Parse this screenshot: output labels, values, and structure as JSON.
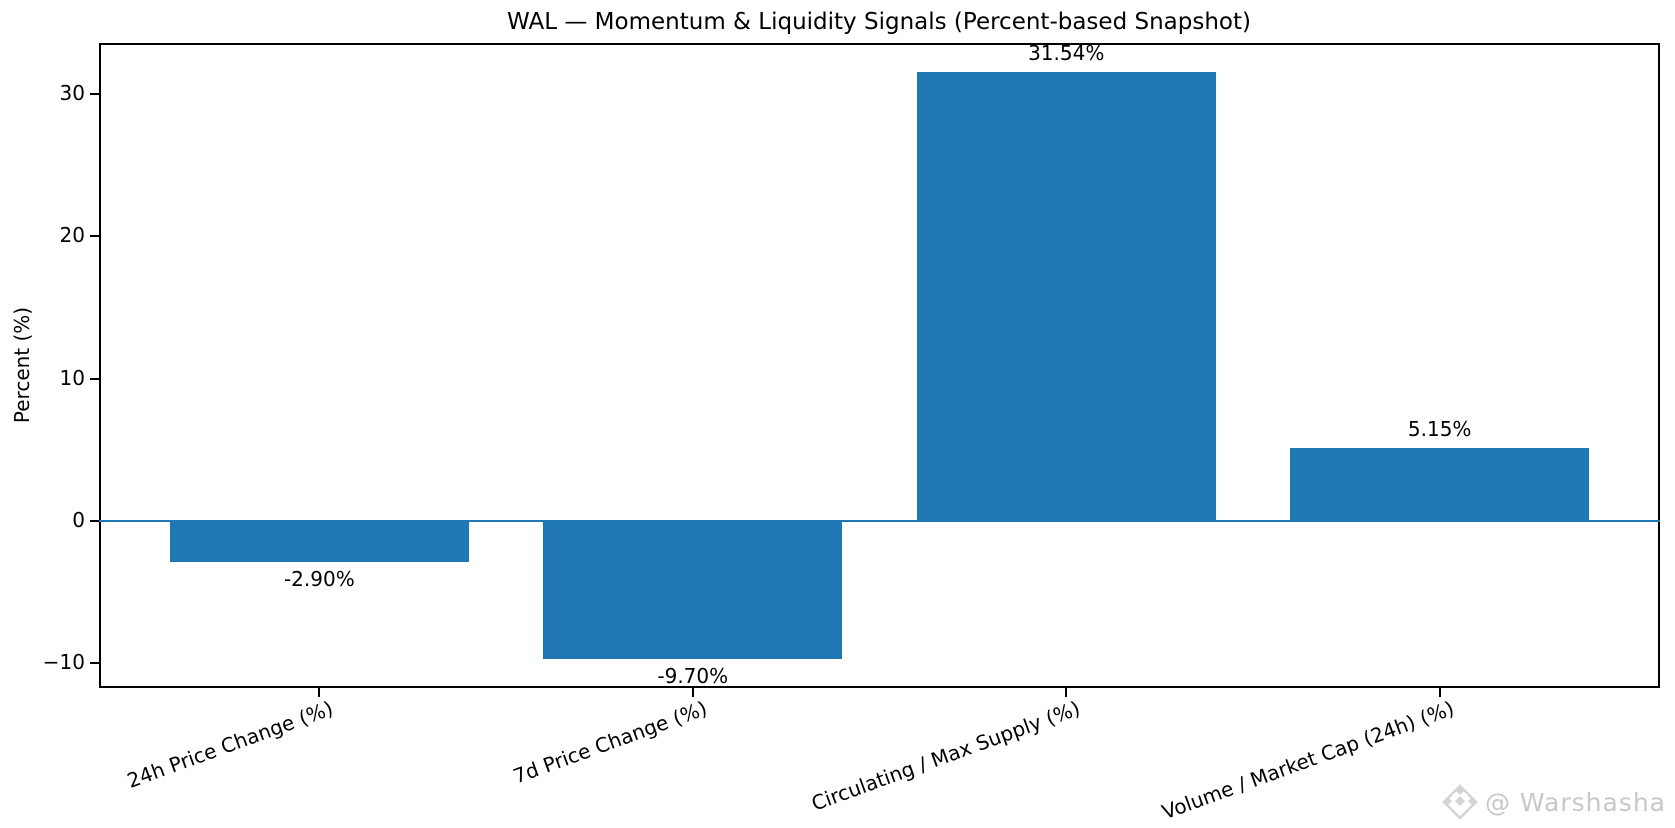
{
  "chart_data": {
    "type": "bar",
    "title": "WAL — Momentum & Liquidity Signals (Percent-based Snapshot)",
    "xlabel": "",
    "ylabel": "Percent (%)",
    "categories": [
      "24h Price Change (%)",
      "7d Price Change (%)",
      "Circulating / Max Supply (%)",
      "Volume / Market Cap (24h) (%)"
    ],
    "values": [
      -2.9,
      -9.7,
      31.54,
      5.15
    ],
    "bar_labels": [
      "-2.90%",
      "-9.70%",
      "31.54%",
      "5.15%"
    ],
    "bar_color": "#1f77b4",
    "zero_line_color": "#1f77b4",
    "ylim": [
      -11.76,
      33.6
    ],
    "xlim": [
      -0.59,
      3.59
    ],
    "yticks": [
      30,
      20,
      10,
      0,
      -10
    ],
    "ytick_labels": [
      "30",
      "20",
      "10",
      "0",
      "−10"
    ],
    "bar_width": 0.8,
    "tick_rotation_deg": 20,
    "grid": false,
    "legend": null
  },
  "watermark": {
    "icon": "gem-diamond-icon",
    "text": "@ Warshasha",
    "color": "#c8c8c8"
  }
}
